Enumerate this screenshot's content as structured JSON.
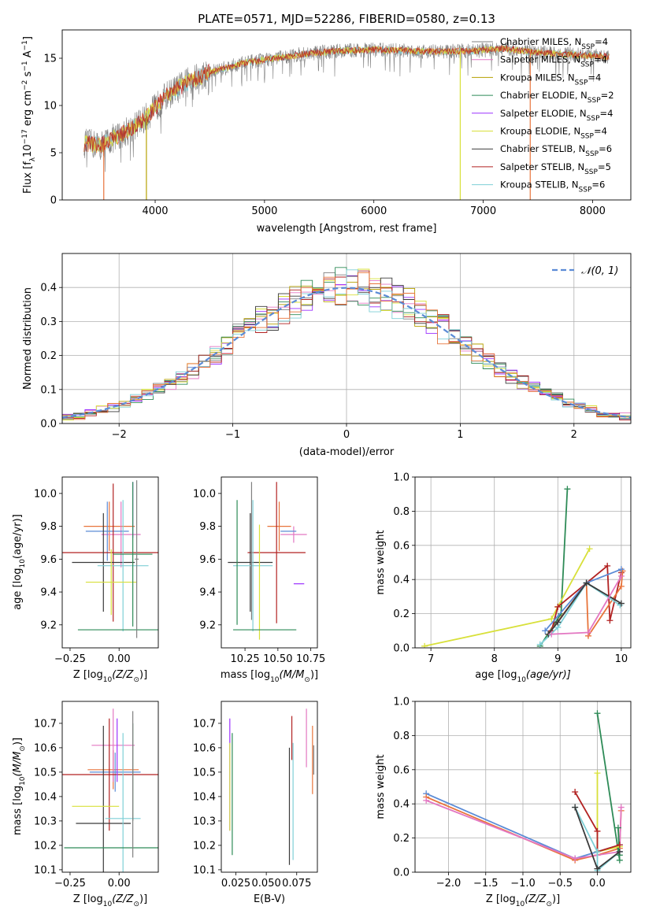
{
  "figure": {
    "title": "PLATE=0571, MJD=52286, FIBERID=0580, z=0.13",
    "colors": {
      "Chabrier MILES": "#808080",
      "Salpeter MILES": "#e377c2",
      "Kroupa MILES": "#b5a000",
      "Chabrier ELODIE": "#2e8b57",
      "Salpeter ELODIE": "#9b30ff",
      "Kroupa ELODIE": "#d8e03a",
      "Chabrier STELIB": "#3a3a3a",
      "Salpeter STELIB": "#b22222",
      "Kroupa STELIB": "#7ecfd6",
      "orange": "#e8743b",
      "blue": "#5b8bd6",
      "gauss": "#5b8bd6"
    }
  },
  "chart_data": [
    {
      "id": "spectrum",
      "type": "line",
      "title": "PLATE=0571, MJD=52286, FIBERID=0580, z=0.13",
      "xlabel": "wavelength [Angstrom, rest frame]",
      "ylabel_main": "Flux [f",
      "ylabel_sub": "λ",
      "ylabel_rest": "10",
      "ylabel_sup1": "−17",
      "ylabel_tail": " erg cm",
      "ylabel_sup2": "−2",
      "ylabel_tail2": " s",
      "ylabel_sup3": "−1",
      "ylabel_tail3": " A",
      "ylabel_sup4": "−1",
      "ylabel_end": "]",
      "xlim": [
        3150,
        8350
      ],
      "ylim": [
        0,
        18
      ],
      "xticks": [
        4000,
        5000,
        6000,
        7000,
        8000
      ],
      "yticks": [
        0,
        5,
        10,
        15
      ],
      "legend_placement": "top-right",
      "legend": [
        {
          "label": "Chabrier MILES, N",
          "sub": "SSP",
          "tail": "=4",
          "color": "#808080"
        },
        {
          "label": "Salpeter MILES, N",
          "sub": "SSP",
          "tail": "=4",
          "color": "#e377c2"
        },
        {
          "label": "Kroupa MILES, N",
          "sub": "SSP",
          "tail": "=4",
          "color": "#b5a000"
        },
        {
          "label": "Chabrier ELODIE, N",
          "sub": "SSP",
          "tail": "=2",
          "color": "#2e8b57"
        },
        {
          "label": "Salpeter ELODIE, N",
          "sub": "SSP",
          "tail": "=4",
          "color": "#9b30ff"
        },
        {
          "label": "Kroupa ELODIE, N",
          "sub": "SSP",
          "tail": "=4",
          "color": "#d8e03a"
        },
        {
          "label": "Chabrier STELIB, N",
          "sub": "SSP",
          "tail": "=6",
          "color": "#3a3a3a"
        },
        {
          "label": "Salpeter STELIB, N",
          "sub": "SSP",
          "tail": "=5",
          "color": "#b22222"
        },
        {
          "label": "Kroupa STELIB, N",
          "sub": "SSP",
          "tail": "=6",
          "color": "#7ecfd6"
        }
      ],
      "continuum_x": [
        3350,
        3500,
        3700,
        3900,
        4100,
        4300,
        4500,
        4800,
        5100,
        5400,
        5700,
        6000,
        6300,
        6600,
        6900,
        7200,
        7500,
        7800,
        8100
      ],
      "continuum_y": [
        6.0,
        5.8,
        7.0,
        8.5,
        11.0,
        12.5,
        13.5,
        14.5,
        15.0,
        15.5,
        15.8,
        15.9,
        15.8,
        15.7,
        15.8,
        16.0,
        15.6,
        15.4,
        15.2
      ],
      "drops": [
        {
          "x": 3530,
          "color": "#e8743b"
        },
        {
          "x": 3920,
          "color": "#b5a000"
        },
        {
          "x": 6790,
          "color": "#d8e03a"
        },
        {
          "x": 7430,
          "color": "#e8743b"
        }
      ]
    },
    {
      "id": "residuals",
      "type": "bar",
      "xlabel": "(data-model)/error",
      "ylabel": "Normed distribution",
      "xlim": [
        -2.5,
        2.5
      ],
      "ylim": [
        0,
        0.5
      ],
      "xticks": [
        -2,
        -1,
        0,
        1,
        2
      ],
      "xticklabels": [
        "−2",
        "−1",
        "0",
        "1",
        "2"
      ],
      "yticks": [
        0.0,
        0.1,
        0.2,
        0.3,
        0.4
      ],
      "grid": true,
      "legend": "𝒩(0, 1)",
      "legend_placement": "top-right",
      "bin_width": 0.1,
      "series_colors": [
        "#808080",
        "#e377c2",
        "#b5a000",
        "#2e8b57",
        "#9b30ff",
        "#d8e03a",
        "#3a3a3a",
        "#b22222",
        "#7ecfd6",
        "#e8743b"
      ]
    },
    {
      "id": "age-Z",
      "type": "scatter",
      "xlabel": "Z [log",
      "xlabel_sub": "10",
      "xlabel_tail": "(Z/Z",
      "xlabel_sub2": "⊙",
      "xlabel_end": ")]",
      "ylabel": "age  [log",
      "ylabel_sub": "10",
      "ylabel_tail": "(age/yr)]",
      "xlim": [
        -0.29,
        0.2
      ],
      "ylim": [
        9.06,
        10.1
      ],
      "xticks": [
        -0.25,
        0.0
      ],
      "xticklabels": [
        "−0.25",
        "0.00"
      ],
      "yticks": [
        9.2,
        9.4,
        9.6,
        9.8,
        10.0
      ],
      "points": [
        {
          "x": -0.05,
          "y": 9.8,
          "xe": 0.13,
          "ye": 0.15,
          "color": "#e8743b"
        },
        {
          "x": 0.01,
          "y": 9.75,
          "xe": 0.1,
          "ye": 0.2,
          "color": "#e377c2"
        },
        {
          "x": -0.06,
          "y": 9.77,
          "xe": 0.11,
          "ye": 0.18,
          "color": "#5b8bd6"
        },
        {
          "x": -0.03,
          "y": 9.64,
          "xe": 0.27,
          "ye": 0.42,
          "color": "#b22222"
        },
        {
          "x": -0.08,
          "y": 9.58,
          "xe": 0.16,
          "ye": 0.3,
          "color": "#3a3a3a"
        },
        {
          "x": 0.02,
          "y": 9.56,
          "xe": 0.13,
          "ye": 0.4,
          "color": "#7ecfd6"
        },
        {
          "x": -0.04,
          "y": 9.46,
          "xe": 0.13,
          "ye": 0.2,
          "color": "#d8e03a"
        },
        {
          "x": 0.07,
          "y": 9.9,
          "xe": 0.0,
          "ye": 0.17,
          "color": "#9b30ff"
        },
        {
          "x": 0.07,
          "y": 9.63,
          "xe": 0.1,
          "ye": 0.44,
          "color": "#2e8b57"
        },
        {
          "x": 0.07,
          "y": 9.17,
          "xe": 0.28,
          "ye": 0.0,
          "color": "#2e8b57"
        },
        {
          "x": 0.09,
          "y": 9.6,
          "xe": 0.01,
          "ye": 0.48,
          "color": "#808080"
        }
      ]
    },
    {
      "id": "age-mass",
      "type": "scatter",
      "xlabel": "mass [log",
      "xlabel_sub": "10",
      "xlabel_tail": "(M/M",
      "xlabel_sub2": "⊙",
      "xlabel_end": ")]",
      "xlim": [
        10.07,
        10.8
      ],
      "ylim": [
        9.06,
        10.1
      ],
      "xticks": [
        10.25,
        10.5,
        10.75
      ],
      "xticklabels": [
        "10.25",
        "10.50",
        "10.75"
      ],
      "yticks": [
        9.2,
        9.4,
        9.6,
        9.8,
        10.0
      ],
      "points": [
        {
          "x": 10.51,
          "y": 9.8,
          "xe": 0.09,
          "ye": 0.15,
          "color": "#e8743b"
        },
        {
          "x": 10.62,
          "y": 9.75,
          "xe": 0.1,
          "ye": 0.05,
          "color": "#e377c2"
        },
        {
          "x": 10.58,
          "y": 9.77,
          "xe": 0.06,
          "ye": 0.0,
          "color": "#5b8bd6"
        },
        {
          "x": 10.49,
          "y": 9.64,
          "xe": 0.22,
          "ye": 0.43,
          "color": "#b22222"
        },
        {
          "x": 10.29,
          "y": 9.58,
          "xe": 0.17,
          "ye": 0.3,
          "color": "#3a3a3a"
        },
        {
          "x": 10.31,
          "y": 9.56,
          "xe": 0.15,
          "ye": 0.4,
          "color": "#7ecfd6"
        },
        {
          "x": 10.36,
          "y": 9.46,
          "xe": 0.0,
          "ye": 0.35,
          "color": "#d8e03a"
        },
        {
          "x": 10.66,
          "y": 9.45,
          "xe": 0.04,
          "ye": 0.0,
          "color": "#9b30ff"
        },
        {
          "x": 10.19,
          "y": 9.58,
          "xe": 0.0,
          "ye": 0.38,
          "color": "#2e8b57"
        },
        {
          "x": 10.4,
          "y": 9.17,
          "xe": 0.24,
          "ye": 0.0,
          "color": "#2e8b57"
        },
        {
          "x": 10.3,
          "y": 9.65,
          "xe": 0.0,
          "ye": 0.42,
          "color": "#808080"
        }
      ]
    },
    {
      "id": "weight-age",
      "type": "line",
      "xlabel": "age  [log",
      "xlabel_sub": "10",
      "xlabel_tail": "(age/yr)]",
      "ylabel": "mass weight",
      "xlim": [
        6.75,
        10.15
      ],
      "ylim": [
        0,
        1.0
      ],
      "xticks": [
        7,
        8,
        9,
        10
      ],
      "yticks": [
        0.0,
        0.2,
        0.4,
        0.6,
        0.8,
        1.0
      ],
      "grid": true,
      "series": [
        {
          "color": "#2e8b57",
          "x": [
            8.72,
            9.05,
            9.15
          ],
          "y": [
            0.01,
            0.2,
            0.93
          ]
        },
        {
          "color": "#d8e03a",
          "x": [
            6.9,
            8.9,
            9.0,
            9.5
          ],
          "y": [
            0.01,
            0.17,
            0.24,
            0.58
          ]
        },
        {
          "color": "#b22222",
          "x": [
            8.9,
            9.0,
            9.78,
            9.82,
            10.0
          ],
          "y": [
            0.1,
            0.24,
            0.48,
            0.16,
            0.44
          ]
        },
        {
          "color": "#e8743b",
          "x": [
            8.85,
            9.45,
            9.48,
            10.0,
            10.02
          ],
          "y": [
            0.08,
            0.38,
            0.07,
            0.36,
            0.45
          ]
        },
        {
          "color": "#5b8bd6",
          "x": [
            8.8,
            9.45,
            10.0
          ],
          "y": [
            0.1,
            0.38,
            0.46
          ]
        },
        {
          "color": "#7ecfd6",
          "x": [
            8.72,
            9.0,
            9.45,
            9.98
          ],
          "y": [
            0.02,
            0.12,
            0.38,
            0.25
          ]
        },
        {
          "color": "#3a3a3a",
          "x": [
            8.85,
            9.0,
            9.45,
            10.0
          ],
          "y": [
            0.08,
            0.15,
            0.38,
            0.26
          ]
        },
        {
          "color": "#e377c2",
          "x": [
            8.9,
            9.48,
            10.0
          ],
          "y": [
            0.08,
            0.09,
            0.42
          ]
        }
      ]
    },
    {
      "id": "mass-Z",
      "type": "scatter",
      "xlabel": "Z [log",
      "xlabel_sub": "10",
      "xlabel_tail": "(Z/Z",
      "xlabel_sub2": "⊙",
      "xlabel_end": ")]",
      "ylabel": "mass [log",
      "ylabel_sub": "10",
      "ylabel_tail": "(M/M",
      "ylabel_sub2": "⊙",
      "ylabel_end": ")]",
      "xlim": [
        -0.29,
        0.2
      ],
      "ylim": [
        10.09,
        10.79
      ],
      "xticks": [
        -0.25,
        0.0
      ],
      "xticklabels": [
        "−0.25",
        "0.00"
      ],
      "yticks": [
        10.1,
        10.2,
        10.3,
        10.4,
        10.5,
        10.6,
        10.7
      ],
      "points": [
        {
          "x": -0.03,
          "y": 10.51,
          "xe": 0.13,
          "ye": 0.08,
          "color": "#e8743b"
        },
        {
          "x": -0.03,
          "y": 10.61,
          "xe": 0.11,
          "ye": 0.15,
          "color": "#e377c2"
        },
        {
          "x": -0.02,
          "y": 10.5,
          "xe": 0.13,
          "ye": 0.08,
          "color": "#5b8bd6"
        },
        {
          "x": -0.05,
          "y": 10.49,
          "xe": 0.25,
          "ye": 0.23,
          "color": "#b22222"
        },
        {
          "x": -0.08,
          "y": 10.29,
          "xe": 0.14,
          "ye": 0.4,
          "color": "#3a3a3a"
        },
        {
          "x": 0.02,
          "y": 10.31,
          "xe": 0.09,
          "ye": 0.35,
          "color": "#7ecfd6"
        },
        {
          "x": -0.12,
          "y": 10.36,
          "xe": 0.12,
          "ye": 0.0,
          "color": "#d8e03a"
        },
        {
          "x": -0.01,
          "y": 10.59,
          "xe": 0.0,
          "ye": 0.13,
          "color": "#9b30ff"
        },
        {
          "x": 0.07,
          "y": 10.5,
          "xe": 0.0,
          "ye": 0.2,
          "color": "#2e8b57"
        },
        {
          "x": -0.02,
          "y": 10.19,
          "xe": 0.26,
          "ye": 0.0,
          "color": "#2e8b57"
        },
        {
          "x": 0.07,
          "y": 10.45,
          "xe": 0.0,
          "ye": 0.3,
          "color": "#808080"
        }
      ]
    },
    {
      "id": "mass-EBV",
      "type": "scatter",
      "xlabel": "E(B-V)",
      "xlim": [
        0.013,
        0.092
      ],
      "ylim": [
        10.09,
        10.79
      ],
      "xticks": [
        0.025,
        0.05,
        0.075
      ],
      "xticklabels": [
        "0.025",
        "0.050",
        "0.075"
      ],
      "yticks": [
        10.1,
        10.2,
        10.3,
        10.4,
        10.5,
        10.6,
        10.7
      ],
      "points": [
        {
          "x": 0.02,
          "y": 10.49,
          "xe": 0.0,
          "ye": 0.23,
          "color": "#9b30ff"
        },
        {
          "x": 0.02,
          "y": 10.44,
          "xe": 0.0,
          "ye": 0.18,
          "color": "#d8e03a"
        },
        {
          "x": 0.022,
          "y": 10.41,
          "xe": 0.0,
          "ye": 0.25,
          "color": "#2e8b57"
        },
        {
          "x": 0.069,
          "y": 10.36,
          "xe": 0.0,
          "ye": 0.24,
          "color": "#3a3a3a"
        },
        {
          "x": 0.071,
          "y": 10.64,
          "xe": 0.0,
          "ye": 0.09,
          "color": "#b22222"
        },
        {
          "x": 0.072,
          "y": 10.38,
          "xe": 0.0,
          "ye": 0.24,
          "color": "#7ecfd6"
        },
        {
          "x": 0.083,
          "y": 10.64,
          "xe": 0.0,
          "ye": 0.12,
          "color": "#e377c2"
        },
        {
          "x": 0.088,
          "y": 10.55,
          "xe": 0.0,
          "ye": 0.14,
          "color": "#e8743b"
        },
        {
          "x": 0.089,
          "y": 10.55,
          "xe": 0.0,
          "ye": 0.06,
          "color": "#808080"
        }
      ]
    },
    {
      "id": "weight-Z",
      "type": "line",
      "xlabel": "Z [log",
      "xlabel_sub": "10",
      "xlabel_tail": "(Z/Z",
      "xlabel_sub2": "⊙",
      "xlabel_end": ")]",
      "ylabel": "mass weight",
      "xlim": [
        -2.45,
        0.45
      ],
      "ylim": [
        0,
        1.0
      ],
      "xticks": [
        -2.0,
        -1.5,
        -1.0,
        -0.5,
        0.0
      ],
      "xticklabels": [
        "−2.0",
        "−1.5",
        "−1.0",
        "−0.5",
        "0.0"
      ],
      "yticks": [
        0.0,
        0.2,
        0.4,
        0.6,
        0.8,
        1.0
      ],
      "grid": true,
      "series": [
        {
          "color": "#5b8bd6",
          "x": [
            -2.3,
            -0.3,
            0.0,
            0.3
          ],
          "y": [
            0.46,
            0.08,
            0.12,
            0.16
          ]
        },
        {
          "color": "#e8743b",
          "x": [
            -2.3,
            -0.3,
            0.0,
            0.3,
            0.32
          ],
          "y": [
            0.44,
            0.07,
            0.1,
            0.14,
            0.36
          ]
        },
        {
          "color": "#e377c2",
          "x": [
            -2.3,
            -0.3,
            0.3,
            0.32
          ],
          "y": [
            0.42,
            0.08,
            0.12,
            0.38
          ]
        },
        {
          "color": "#2e8b57",
          "x": [
            0.0,
            0.3,
            0.28,
            0.3
          ],
          "y": [
            0.93,
            0.07,
            0.26,
            0.1
          ]
        },
        {
          "color": "#d8e03a",
          "x": [
            0.0,
            0.0,
            0.3
          ],
          "y": [
            0.58,
            0.12,
            0.15
          ]
        },
        {
          "color": "#b22222",
          "x": [
            -0.3,
            0.0,
            0.0,
            0.3
          ],
          "y": [
            0.47,
            0.24,
            0.12,
            0.16
          ]
        },
        {
          "color": "#7ecfd6",
          "x": [
            -0.3,
            0.0,
            0.0,
            0.3
          ],
          "y": [
            0.38,
            0.12,
            0.01,
            0.12
          ]
        },
        {
          "color": "#3a3a3a",
          "x": [
            -0.3,
            0.0,
            0.3
          ],
          "y": [
            0.38,
            0.02,
            0.12
          ]
        }
      ]
    }
  ]
}
